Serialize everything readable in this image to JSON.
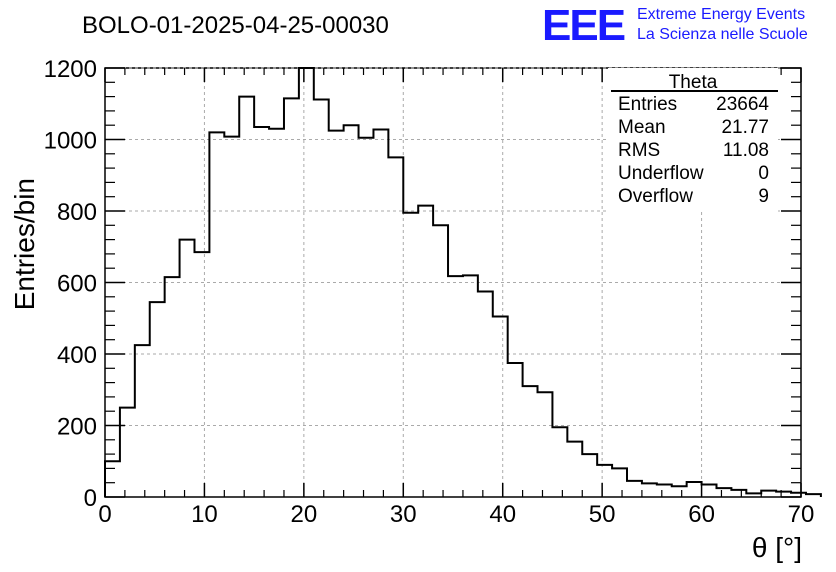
{
  "title": "BOLO-01-2025-04-25-00030",
  "logo": {
    "mark": "EEE",
    "line1": "Extreme Energy Events",
    "line2": "La Scienza nelle Scuole",
    "color": "#1a1aff"
  },
  "stats": {
    "name": "Theta",
    "rows": [
      {
        "label": "Entries",
        "value": "23664"
      },
      {
        "label": "Mean",
        "value": "21.77"
      },
      {
        "label": "RMS",
        "value": "11.08"
      },
      {
        "label": "Underflow",
        "value": "0"
      },
      {
        "label": "Overflow",
        "value": "9"
      }
    ]
  },
  "chart_data": {
    "type": "histogram",
    "title": "BOLO-01-2025-04-25-00030",
    "xlabel": "θ [°]",
    "ylabel": "Entries/bin",
    "xlim": [
      0,
      70
    ],
    "ylim": [
      0,
      1200
    ],
    "xticks": [
      0,
      10,
      20,
      30,
      40,
      50,
      60,
      70
    ],
    "yticks": [
      0,
      200,
      400,
      600,
      800,
      1000,
      1200
    ],
    "grid": true,
    "bin_width": 1.5,
    "bin_start": 0,
    "values": [
      100,
      250,
      425,
      545,
      615,
      720,
      685,
      1020,
      1008,
      1120,
      1035,
      1030,
      1115,
      1200,
      1112,
      1025,
      1040,
      1005,
      1028,
      950,
      795,
      815,
      760,
      618,
      620,
      575,
      505,
      375,
      310,
      293,
      195,
      155,
      120,
      90,
      80,
      45,
      38,
      35,
      30,
      42,
      35,
      25,
      20,
      10,
      18,
      15,
      12,
      8
    ]
  }
}
